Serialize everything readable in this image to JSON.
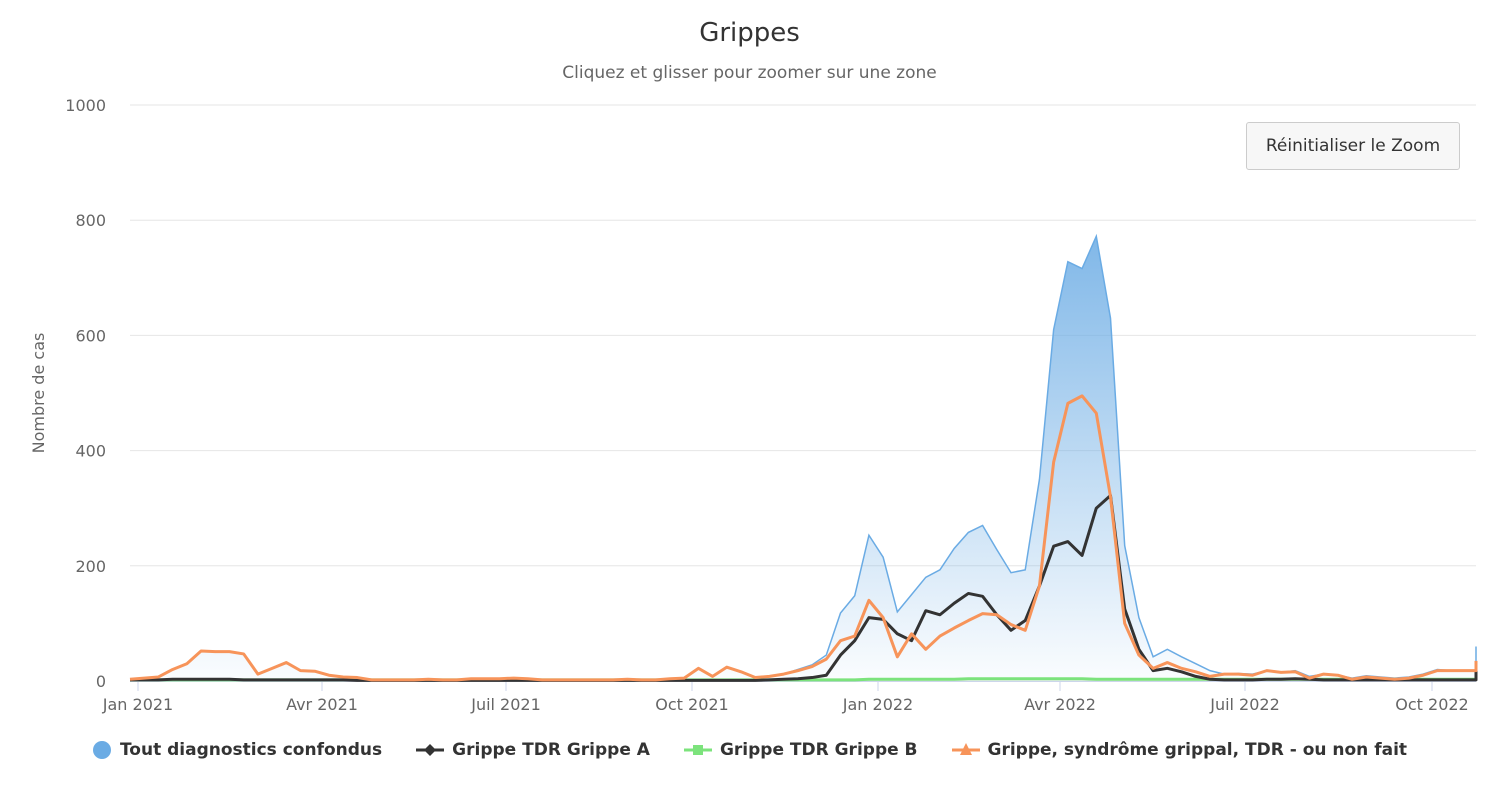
{
  "title": "Grippes",
  "subtitle": "Cliquez et glisser pour zoomer sur une zone",
  "reset_zoom_label": "Réinitialiser le Zoom",
  "colors": {
    "tout": "#6aabe4",
    "grippe_a": "#333333",
    "grippe_b": "#7ce37c",
    "syndrome": "#f7945a",
    "grid": "#e6e6e6",
    "axis_text": "#666666"
  },
  "legend": [
    {
      "label": "Tout diagnostics confondus",
      "symbol": "circle",
      "color": "#6aabe4"
    },
    {
      "label": "Grippe TDR Grippe A",
      "symbol": "diamond-line",
      "color": "#333333"
    },
    {
      "label": "Grippe TDR Grippe B",
      "symbol": "square-line",
      "color": "#7ce37c"
    },
    {
      "label": "Grippe, syndrôme grippal, TDR - ou non fait",
      "symbol": "triangle-line",
      "color": "#f7945a"
    }
  ],
  "chart_data": {
    "type": "area+line",
    "title": "Grippes",
    "subtitle": "Cliquez et glisser pour zoomer sur une zone",
    "xlabel": "",
    "ylabel": "Nombre de cas",
    "ylim": [
      0,
      1000
    ],
    "yticks": [
      0,
      200,
      400,
      600,
      800,
      1000
    ],
    "xtick_labels": [
      "Jan 2021",
      "Avr 2021",
      "Juil 2021",
      "Oct 2021",
      "Jan 2022",
      "Avr 2022",
      "Juil 2022",
      "Oct 2022"
    ],
    "grid": true,
    "legend_position": "bottom",
    "x_unit": "week",
    "x_start_week_offset": -0.5,
    "series": [
      {
        "name": "Tout diagnostics confondus",
        "type": "area",
        "values": [
          3,
          5,
          7,
          20,
          30,
          52,
          51,
          51,
          47,
          12,
          22,
          32,
          18,
          17,
          10,
          7,
          6,
          2,
          2,
          2,
          2,
          3,
          2,
          2,
          4,
          4,
          4,
          5,
          4,
          2,
          2,
          2,
          2,
          2,
          2,
          3,
          2,
          2,
          4,
          5,
          22,
          8,
          24,
          16,
          6,
          8,
          12,
          20,
          28,
          45,
          118,
          148,
          253,
          215,
          120,
          150,
          180,
          193,
          230,
          258,
          270,
          228,
          188,
          193,
          350,
          610,
          728,
          716,
          772,
          630,
          235,
          110,
          42,
          55,
          42,
          30,
          18,
          12,
          13,
          12,
          18,
          15,
          18,
          8,
          12,
          10,
          5,
          9,
          7,
          5,
          7,
          12,
          20,
          18,
          18,
          18,
          40,
          60
        ]
      },
      {
        "name": "Grippe TDR Grippe A",
        "type": "line",
        "values": [
          2,
          2,
          2,
          3,
          3,
          3,
          3,
          3,
          2,
          2,
          2,
          2,
          2,
          2,
          2,
          2,
          1,
          1,
          1,
          1,
          1,
          1,
          1,
          1,
          1,
          1,
          1,
          1,
          1,
          1,
          1,
          1,
          1,
          1,
          1,
          1,
          1,
          1,
          1,
          1,
          1,
          1,
          1,
          1,
          1,
          2,
          3,
          4,
          6,
          10,
          45,
          70,
          110,
          107,
          82,
          70,
          122,
          115,
          135,
          152,
          147,
          115,
          88,
          105,
          165,
          234,
          242,
          218,
          300,
          322,
          125,
          55,
          18,
          22,
          16,
          8,
          3,
          2,
          2,
          2,
          3,
          3,
          4,
          3,
          2,
          2,
          2,
          2,
          2,
          2,
          2,
          2,
          2,
          2,
          2,
          2,
          15,
          28
        ]
      },
      {
        "name": "Grippe TDR Grippe B",
        "type": "line",
        "values": [
          2,
          2,
          2,
          2,
          2,
          2,
          2,
          2,
          2,
          2,
          2,
          2,
          2,
          2,
          2,
          2,
          2,
          2,
          2,
          2,
          2,
          2,
          2,
          2,
          2,
          2,
          2,
          2,
          2,
          2,
          2,
          2,
          2,
          2,
          2,
          2,
          2,
          2,
          2,
          2,
          2,
          2,
          2,
          2,
          2,
          2,
          2,
          2,
          2,
          2,
          2,
          2,
          3,
          3,
          3,
          3,
          3,
          3,
          3,
          4,
          4,
          4,
          4,
          4,
          4,
          4,
          4,
          4,
          3,
          3,
          3,
          3,
          3,
          3,
          3,
          3,
          3,
          3,
          3,
          3,
          3,
          3,
          3,
          3,
          3,
          3,
          3,
          3,
          3,
          3,
          3,
          3,
          3,
          3,
          3,
          3,
          3,
          3
        ]
      },
      {
        "name": "Grippe, syndrôme grippal, TDR - ou non fait",
        "type": "line",
        "values": [
          3,
          5,
          7,
          20,
          30,
          52,
          51,
          51,
          47,
          12,
          22,
          32,
          18,
          17,
          10,
          7,
          6,
          2,
          2,
          2,
          2,
          3,
          2,
          2,
          4,
          4,
          4,
          5,
          4,
          2,
          2,
          2,
          2,
          2,
          2,
          3,
          2,
          2,
          4,
          5,
          22,
          8,
          24,
          16,
          6,
          8,
          12,
          18,
          25,
          38,
          70,
          78,
          140,
          110,
          42,
          82,
          55,
          78,
          92,
          105,
          117,
          115,
          98,
          88,
          165,
          380,
          482,
          495,
          465,
          320,
          100,
          45,
          22,
          32,
          22,
          16,
          8,
          12,
          12,
          10,
          18,
          15,
          16,
          5,
          12,
          10,
          3,
          7,
          5,
          3,
          5,
          10,
          18,
          18,
          18,
          18,
          25,
          35
        ]
      }
    ]
  }
}
